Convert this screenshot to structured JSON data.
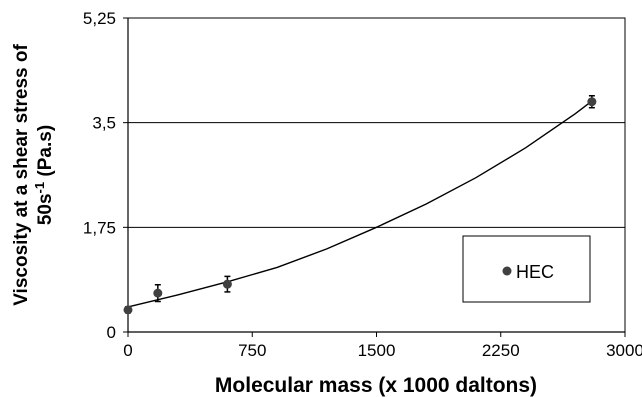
{
  "chart_data": {
    "type": "scatter",
    "title": "",
    "xlabel": "Molecular mass (x 1000 daltons)",
    "ylabel_line1": "Viscosity at a shear stress of",
    "ylabel_line2_prefix": "50s",
    "ylabel_line2_sup": "-1",
    "ylabel_line2_suffix": "  (Pa.s)",
    "xlim": [
      0,
      3000
    ],
    "ylim": [
      0,
      5.25
    ],
    "xticks": [
      0,
      750,
      1500,
      2250,
      3000
    ],
    "xtick_labels": [
      "0",
      "750",
      "1500",
      "2250",
      "3000"
    ],
    "yticks": [
      0,
      1.75,
      3.5,
      5.25
    ],
    "ytick_labels": [
      "0",
      "1,75",
      "3,5",
      "5,25"
    ],
    "grid": "horizontal",
    "legend_position": "right",
    "series": [
      {
        "name": "HEC",
        "color": "#404040",
        "marker": "circle",
        "points": [
          {
            "x": 0,
            "y": 0.37,
            "err": 0.05
          },
          {
            "x": 180,
            "y": 0.65,
            "err": 0.14
          },
          {
            "x": 600,
            "y": 0.8,
            "err": 0.13
          },
          {
            "x": 2800,
            "y": 3.85,
            "err": 0.1
          }
        ]
      }
    ],
    "trendline": {
      "type": "polynomial",
      "points": [
        {
          "x": 0,
          "y": 0.42
        },
        {
          "x": 300,
          "y": 0.62
        },
        {
          "x": 600,
          "y": 0.84
        },
        {
          "x": 900,
          "y": 1.08
        },
        {
          "x": 1200,
          "y": 1.39
        },
        {
          "x": 1500,
          "y": 1.75
        },
        {
          "x": 1800,
          "y": 2.14
        },
        {
          "x": 2100,
          "y": 2.58
        },
        {
          "x": 2400,
          "y": 3.08
        },
        {
          "x": 2700,
          "y": 3.65
        },
        {
          "x": 2800,
          "y": 3.86
        }
      ]
    }
  }
}
